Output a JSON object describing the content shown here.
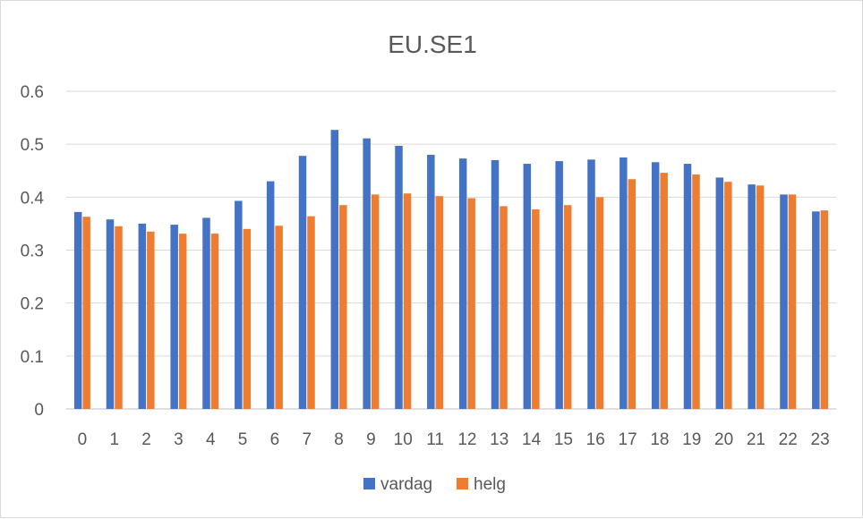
{
  "chart_data": {
    "type": "bar",
    "title": "EU.SE1",
    "xlabel": "",
    "ylabel": "",
    "ylim": [
      0,
      0.6
    ],
    "yticks": [
      "0",
      "0.1",
      "0.2",
      "0.3",
      "0.4",
      "0.5",
      "0.6"
    ],
    "grid": true,
    "legend_position": "bottom",
    "categories": [
      "0",
      "1",
      "2",
      "3",
      "4",
      "5",
      "6",
      "7",
      "8",
      "9",
      "10",
      "11",
      "12",
      "13",
      "14",
      "15",
      "16",
      "17",
      "18",
      "19",
      "20",
      "21",
      "22",
      "23"
    ],
    "series": [
      {
        "name": "vardag",
        "color": "#4472C4",
        "values": [
          0.372,
          0.358,
          0.35,
          0.348,
          0.361,
          0.393,
          0.43,
          0.478,
          0.527,
          0.511,
          0.497,
          0.48,
          0.473,
          0.47,
          0.463,
          0.468,
          0.471,
          0.475,
          0.466,
          0.463,
          0.437,
          0.424,
          0.405,
          0.373
        ]
      },
      {
        "name": "helg",
        "color": "#ED7D31",
        "values": [
          0.363,
          0.345,
          0.335,
          0.331,
          0.331,
          0.34,
          0.346,
          0.364,
          0.385,
          0.405,
          0.407,
          0.402,
          0.398,
          0.383,
          0.377,
          0.385,
          0.4,
          0.434,
          0.446,
          0.443,
          0.429,
          0.422,
          0.405,
          0.375
        ]
      }
    ]
  }
}
